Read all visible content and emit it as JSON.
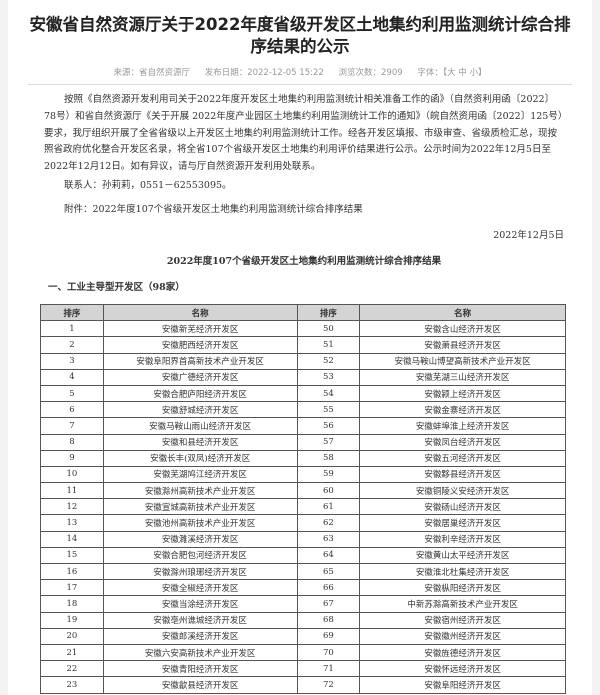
{
  "title": "安徽省自然资源厅关于2022年度省级开发区土地集约利用监测统计综合排序结果的公示",
  "meta": {
    "source": "来源：省自然资源厅",
    "date": "发布日期：2022-12-05 15:22",
    "views": "浏览次数：2909",
    "font_label": "字体：",
    "font_options": "【大 中 小】"
  },
  "body": {
    "paragraph": "按照《自然资源开发利用司关于2022年度开发区土地集约利用监测统计相关准备工作的函》（自然资利用函〔2022〕78号）和省自然资源厅《关于开展 2022年度产业园区土地集约利用监测统计工作的通知》（皖自然资用函〔2022〕125号）要求，我厅组织开展了全省省级以上开发区土地集约利用监测统计工作。经各开发区填报、市级审查、省级质检汇总，现按照省政府优化整合开发区名录，将全省107个省级开发区土地集约利用评价结果进行公示。公示时间为2022年12月5日至2022年12月12日。如有异议，请与厅自然资源开发利用处联系。",
    "contact": "联系人：孙莉莉，0551－62553095。",
    "attachment": "附件：2022年度107个省级开发区土地集约利用监测统计综合排序结果",
    "sign_date": "2022年12月5日"
  },
  "attachment_title": "2022年度107个省级开发区土地集约利用监测统计综合排序结果",
  "section": "一、工业主导型开发区（98家）",
  "table": {
    "headers": [
      "排序",
      "名称",
      "排序",
      "名称"
    ],
    "rows": [
      [
        "1",
        "安徽新芜经济开发区",
        "50",
        "安徽含山经济开发区"
      ],
      [
        "2",
        "安徽肥西经济开发区",
        "51",
        "安徽萧县经济开发区"
      ],
      [
        "3",
        "安徽阜阳界首高新技术产业开发区",
        "52",
        "安徽马鞍山博望高新技术产业开发区"
      ],
      [
        "4",
        "安徽广德经济开发区",
        "53",
        "安徽芜湖三山经济开发区"
      ],
      [
        "5",
        "安徽合肥庐阳经济开发区",
        "54",
        "安徽颍上经济开发区"
      ],
      [
        "6",
        "安徽舒城经济开发区",
        "55",
        "安徽金寨经济开发区"
      ],
      [
        "7",
        "安徽马鞍山雨山经济开发区",
        "56",
        "安徽蚌埠淮上经济开发区"
      ],
      [
        "8",
        "安徽和县经济开发区",
        "57",
        "安徽凤台经济开发区"
      ],
      [
        "9",
        "安徽长丰(双凤)经济开发区",
        "58",
        "安徽五河经济开发区"
      ],
      [
        "10",
        "安徽芜湖鸠江经济开发区",
        "59",
        "安徽黟县经济开发区"
      ],
      [
        "11",
        "安徽滁州高新技术产业开发区",
        "60",
        "安徽铜陵义安经济开发区"
      ],
      [
        "12",
        "安徽宣城高新技术产业开发区",
        "61",
        "安徽砀山经济开发区"
      ],
      [
        "13",
        "安徽池州高新技术产业开发区",
        "62",
        "安徽居巢经济开发区"
      ],
      [
        "14",
        "安徽濉溪经济开发区",
        "63",
        "安徽利辛经济开发区"
      ],
      [
        "15",
        "安徽合肥包河经济开发区",
        "64",
        "安徽黄山太平经济开发区"
      ],
      [
        "16",
        "安徽滁州琅琊经济开发区",
        "65",
        "安徽淮北杜集经济开发区"
      ],
      [
        "17",
        "安徽全椒经济开发区",
        "66",
        "安徽枞阳经济开发区"
      ],
      [
        "18",
        "安徽当涂经济开发区",
        "67",
        "中新苏滁高新技术产业开发区"
      ],
      [
        "19",
        "安徽亳州谯城经济开发区",
        "68",
        "安徽宿州经济开发区"
      ],
      [
        "20",
        "安徽郎溪经济开发区",
        "69",
        "安徽徽州经济开发区"
      ],
      [
        "21",
        "安徽六安高新技术产业开发区",
        "70",
        "安徽旌德经济开发区"
      ],
      [
        "22",
        "安徽青阳经济开发区",
        "71",
        "安徽怀远经济开发区"
      ],
      [
        "23",
        "安徽歙县经济开发区",
        "72",
        "安徽阜阳经济开发区"
      ]
    ]
  }
}
